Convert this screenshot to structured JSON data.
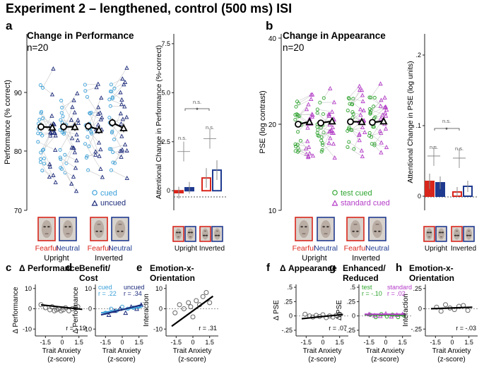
{
  "figure_title": "Experiment 2 – lengthened, control (500 ms) ISI",
  "colors": {
    "cued": "#3aa0d8",
    "uncued": "#1b2a7a",
    "fearful": "#d9261c",
    "neutral": "#1f3a8f",
    "test_cued": "#2fa52f",
    "standard_cued": "#b43cc8",
    "grey": "#aaaaaa",
    "dark": "#111111"
  },
  "panel_a": {
    "label": "a",
    "title": "Change in Performance",
    "n": "n=20",
    "legend": [
      "cued",
      "uncued"
    ],
    "left_chart": {
      "ylabel": "Performance (% correct)",
      "yticks": [
        "70",
        "80",
        "90"
      ],
      "ylim": [
        70,
        95
      ],
      "condition_labels": [
        "Fearful",
        "Neutral",
        "Fearful",
        "Neutral"
      ],
      "group_labels": [
        "Upright",
        "Inverted"
      ]
    },
    "right_chart": {
      "ylabel": "Attentional Change in Performance (%-correct)",
      "yticks": [
        "0",
        "2.5",
        "5.0",
        "7.5"
      ],
      "ylim": [
        -1,
        8
      ],
      "annotations": [
        "n.s.",
        "n.s.",
        "n.s.",
        "*"
      ],
      "group_labels": [
        "Upright",
        "Inverted"
      ]
    }
  },
  "panel_b": {
    "label": "b",
    "title": "Change in Appearance",
    "n": "n=20",
    "legend": [
      "test cued",
      "standard cued"
    ],
    "left_chart": {
      "ylabel": "PSE (log contrast)",
      "yticks": [
        "10",
        "20",
        "40"
      ],
      "condition_labels": [
        "Fearful",
        "Neutral",
        "Fearful",
        "Neutral"
      ],
      "group_labels": [
        "Upright",
        "Inverted"
      ]
    },
    "right_chart": {
      "ylabel": "Attentional Change in PSE (log units)",
      "yticks": [
        "0",
        ".1",
        ".2"
      ],
      "ylim": [
        -0.02,
        0.23
      ],
      "annotations": [
        "n.s.",
        "n.s.",
        "n.s.",
        "*"
      ],
      "group_labels": [
        "Upright",
        "Inverted"
      ]
    }
  },
  "bottom_panels": [
    {
      "label": "c",
      "title": "Δ Performance",
      "ylabel": "Δ Performance",
      "yticks": [
        "10",
        "0",
        "-10"
      ],
      "ylim": [
        -12,
        12
      ],
      "r": "r = -.19"
    },
    {
      "label": "d",
      "title": "Benefit/",
      "title2": "Cost",
      "ylabel": "Δ Performance",
      "yticks": [
        "10",
        "0",
        "-10"
      ],
      "ylim": [
        -12,
        12
      ],
      "legend_a": "cued",
      "legend_a_r": "r = .22",
      "legend_b": "uncued",
      "legend_b_r": "r = .34"
    },
    {
      "label": "e",
      "title": "Emotion-x-",
      "title2": "Orientation",
      "ylabel": "Interaction",
      "yticks": [
        "10",
        "0",
        "-10"
      ],
      "ylim": [
        -12,
        12
      ],
      "r": "r = .31"
    },
    {
      "label": "f",
      "title": "Δ Appearance",
      "ylabel": "Δ PSE",
      "yticks": [
        ".5",
        ".25",
        "0",
        "-.25"
      ],
      "ylim": [
        -0.3,
        0.55
      ],
      "r": "r = .07"
    },
    {
      "label": "g",
      "title": "Enhanced/",
      "title2": "Reduced",
      "ylabel": "Δ PSE",
      "yticks": [
        ".5",
        ".25",
        "0",
        "-.25"
      ],
      "ylim": [
        -0.3,
        0.55
      ],
      "legend_a": "test",
      "legend_a_r": "r = -.10",
      "legend_b": "standard",
      "legend_b_r": "r = .02"
    },
    {
      "label": "h",
      "title": "Emotion-x-",
      "title2": "Orientation",
      "ylabel": "Interaction",
      "yticks": [
        ".25",
        "0",
        "-.25"
      ],
      "ylim": [
        -0.3,
        0.3
      ],
      "r": "r = -.03"
    }
  ],
  "bottom_axis": {
    "xticks": [
      "-1.5",
      "0",
      "1.5"
    ],
    "xlabel": "Trait Anxiety",
    "xlabel2": "(z-score)"
  },
  "chart_data": [
    {
      "type": "scatter",
      "title": "Change in Performance",
      "ylabel": "Performance (% correct)",
      "ylim": [
        70,
        95
      ],
      "categories": [
        "Upright Fearful",
        "Upright Neutral",
        "Inverted Fearful",
        "Inverted Neutral"
      ],
      "series": [
        {
          "name": "cued mean",
          "values": [
            84.2,
            84.2,
            84.3,
            84.9
          ]
        },
        {
          "name": "uncued mean",
          "values": [
            84.1,
            84.2,
            83.7,
            84.0
          ]
        }
      ]
    },
    {
      "type": "bar",
      "title": "Attentional Change in Performance",
      "ylabel": "Attentional Change in Performance (%-correct)",
      "ylim": [
        -1,
        8
      ],
      "categories": [
        "Upright Fearful",
        "Upright Neutral",
        "Inverted Fearful",
        "Inverted Neutral"
      ],
      "values": [
        -0.1,
        0.15,
        0.65,
        1.05
      ],
      "error": [
        0.3,
        0.3,
        0.5,
        0.5
      ],
      "interaction_marks": [
        2.0,
        2.65
      ]
    },
    {
      "type": "scatter",
      "title": "Change in Appearance",
      "ylabel": "PSE (log contrast)",
      "categories": [
        "Upright Fearful",
        "Upright Neutral",
        "Inverted Fearful",
        "Inverted Neutral"
      ],
      "series": [
        {
          "name": "test cued mean",
          "values": [
            20.0,
            20.2,
            20.4,
            20.3
          ]
        },
        {
          "name": "standard cued mean",
          "values": [
            20.4,
            20.5,
            20.4,
            20.5
          ]
        }
      ]
    },
    {
      "type": "bar",
      "title": "Attentional Change in PSE",
      "ylabel": "Attentional Change in PSE (log units)",
      "ylim": [
        -0.02,
        0.23
      ],
      "categories": [
        "Upright Fearful",
        "Upright Neutral",
        "Inverted Fearful",
        "Inverted Neutral"
      ],
      "values": [
        0.021,
        0.019,
        0.006,
        0.014
      ],
      "error": [
        0.011,
        0.009,
        0.007,
        0.008
      ],
      "interaction_marks": [
        0.057,
        0.054
      ]
    },
    {
      "type": "scatter",
      "title": "Δ Performance",
      "xlabel": "Trait Anxiety (z-score)",
      "x": [
        -1.9,
        -1.5,
        -1.1,
        -0.9,
        -0.7,
        -0.5,
        -0.3,
        -0.1,
        0.1,
        0.3,
        0.6,
        0.9,
        1.2,
        1.4
      ],
      "y": [
        2,
        0.5,
        -0.5,
        1,
        -1,
        -0.5,
        0,
        -1,
        -0.5,
        0.5,
        -1,
        0,
        0.5,
        1
      ],
      "fit": [
        0.8,
        -0.6
      ]
    },
    {
      "type": "scatter",
      "title": "Benefit/Cost",
      "xlabel": "Trait Anxiety (z-score)",
      "series": [
        {
          "name": "cued",
          "x": [
            -1.5,
            -1.0,
            -0.5,
            0,
            0.5,
            1.0,
            1.5
          ],
          "y": [
            -2,
            0,
            -1,
            1,
            0,
            0.5,
            1
          ]
        },
        {
          "name": "uncued",
          "x": [
            -1.2,
            -0.7,
            -0.2,
            0.3,
            0.8,
            1.3,
            1.7
          ],
          "y": [
            -3,
            -1,
            0,
            -2,
            1,
            0,
            2
          ]
        }
      ]
    },
    {
      "type": "scatter",
      "title": "Emotion-x-Orientation",
      "xlabel": "Trait Anxiety (z-score)",
      "x": [
        -1.6,
        -1.2,
        -0.8,
        -0.4,
        -0.2,
        0,
        0.3,
        0.6,
        0.9,
        1.2,
        1.5
      ],
      "y": [
        -2,
        2,
        0,
        3,
        1,
        -4,
        4,
        2,
        6,
        8,
        3
      ],
      "fit": [
        -1,
        4
      ]
    },
    {
      "type": "scatter",
      "title": "Δ Appearance",
      "xlabel": "Trait Anxiety (z-score)",
      "x": [
        -1.6,
        -1.2,
        -0.9,
        -0.6,
        -0.3,
        0,
        0.3,
        0.6,
        0.9,
        1.2,
        1.5
      ],
      "y": [
        0.03,
        0,
        -0.02,
        0.01,
        -0.01,
        0.02,
        -0.03,
        0,
        -0.02,
        0.01,
        0.03
      ],
      "fit": [
        -0.01,
        0.02
      ]
    },
    {
      "type": "scatter",
      "title": "Enhanced/Reduced",
      "xlabel": "Trait Anxiety (z-score)",
      "series": [
        {
          "name": "test",
          "x": [
            -1.4,
            -0.9,
            -0.4,
            0.1,
            0.6,
            1.1,
            1.6
          ],
          "y": [
            0.02,
            -0.02,
            0.03,
            -0.01,
            0.02,
            -0.02,
            0.01
          ]
        },
        {
          "name": "standard",
          "x": [
            -1.5,
            -1.0,
            -0.5,
            0,
            0.5,
            1.0,
            1.5
          ],
          "y": [
            0.03,
            0.01,
            0,
            0.04,
            -0.01,
            0.02,
            0.03
          ]
        }
      ]
    },
    {
      "type": "scatter",
      "title": "Emotion-x-Orientation",
      "xlabel": "Trait Anxiety (z-score)",
      "x": [
        -1.4,
        -1.0,
        -0.6,
        -0.2,
        0.2,
        0.6,
        1.0,
        1.4
      ],
      "y": [
        0.02,
        -0.03,
        0.05,
        0.01,
        -0.01,
        0.03,
        0.04,
        -0.02
      ],
      "fit": [
        0.01,
        0.005
      ]
    }
  ]
}
